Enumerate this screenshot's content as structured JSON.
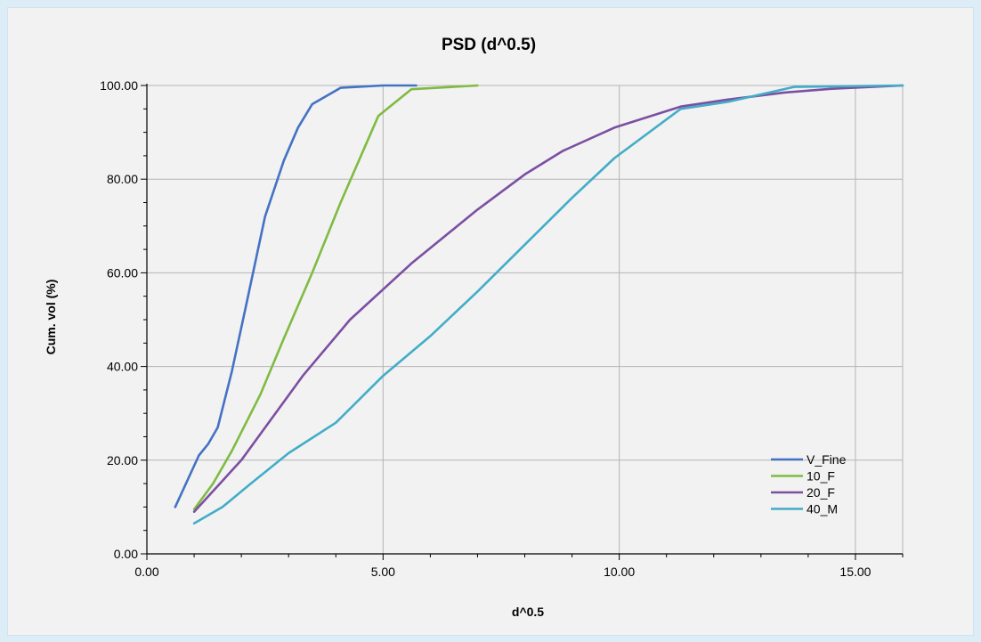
{
  "chart_data": {
    "type": "line",
    "title": "PSD (d^0.5)",
    "xlabel": "d^0.5",
    "ylabel": "Cum. vol (%)",
    "xlim": [
      0,
      16
    ],
    "ylim": [
      0,
      100
    ],
    "xticks": [
      0,
      5,
      10,
      15
    ],
    "xtick_labels": [
      "0.00",
      "5.00",
      "10.00",
      "15.00"
    ],
    "yticks": [
      0,
      20,
      40,
      60,
      80,
      100
    ],
    "ytick_labels": [
      "0.00",
      "20.00",
      "40.00",
      "60.00",
      "80.00",
      "100.00"
    ],
    "grid": true,
    "legend_position": "bottom-right",
    "series": [
      {
        "name": "V_Fine",
        "color": "#4472c4",
        "points": [
          [
            0.6,
            10
          ],
          [
            1.1,
            21
          ],
          [
            1.3,
            23.5
          ],
          [
            1.5,
            27
          ],
          [
            1.8,
            39
          ],
          [
            2.1,
            53
          ],
          [
            2.5,
            72
          ],
          [
            2.9,
            84
          ],
          [
            3.2,
            91
          ],
          [
            3.5,
            96
          ],
          [
            4.1,
            99.5
          ],
          [
            5.0,
            100
          ],
          [
            5.7,
            100
          ]
        ]
      },
      {
        "name": "10_F",
        "color": "#7fbb42",
        "points": [
          [
            1.0,
            9.5
          ],
          [
            1.4,
            15
          ],
          [
            1.8,
            22
          ],
          [
            2.4,
            34
          ],
          [
            2.9,
            46
          ],
          [
            3.5,
            60
          ],
          [
            4.1,
            75
          ],
          [
            4.9,
            93.5
          ],
          [
            5.6,
            99.2
          ],
          [
            7.0,
            100
          ]
        ]
      },
      {
        "name": "20_F",
        "color": "#7b4fa2",
        "points": [
          [
            1.0,
            9
          ],
          [
            2.0,
            20
          ],
          [
            3.3,
            38
          ],
          [
            4.3,
            50
          ],
          [
            5.6,
            62
          ],
          [
            7.0,
            73.5
          ],
          [
            8.0,
            81
          ],
          [
            8.8,
            86
          ],
          [
            9.9,
            91
          ],
          [
            11.3,
            95.5
          ],
          [
            12.3,
            97
          ],
          [
            13.5,
            98.5
          ],
          [
            14.5,
            99.3
          ],
          [
            16.0,
            100
          ]
        ]
      },
      {
        "name": "40_M",
        "color": "#42adc7",
        "points": [
          [
            1.0,
            6.5
          ],
          [
            1.6,
            10
          ],
          [
            2.2,
            15
          ],
          [
            3.0,
            21.5
          ],
          [
            4.0,
            28
          ],
          [
            5.0,
            38
          ],
          [
            6.0,
            46.5
          ],
          [
            7.0,
            56
          ],
          [
            8.0,
            66
          ],
          [
            9.0,
            76
          ],
          [
            9.9,
            84.5
          ],
          [
            11.3,
            95
          ],
          [
            12.3,
            96.5
          ],
          [
            13.7,
            99.7
          ],
          [
            16.0,
            100
          ]
        ]
      }
    ]
  }
}
